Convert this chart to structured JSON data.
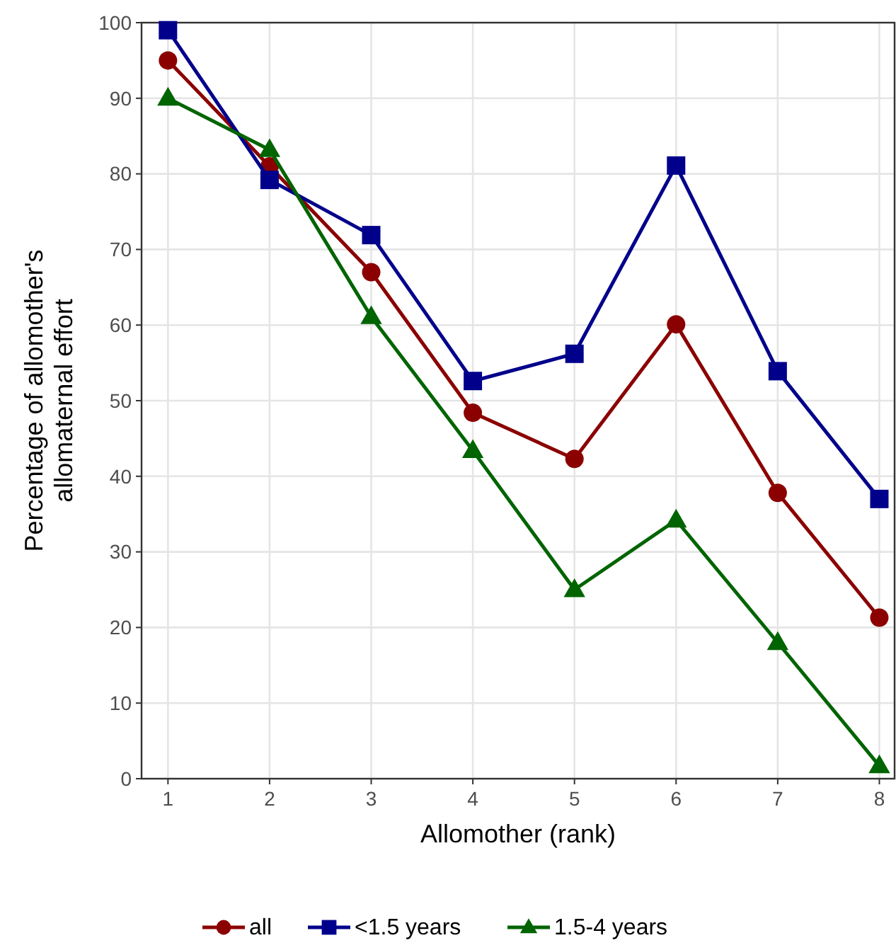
{
  "chart_data": {
    "type": "line",
    "xlabel": "Allomother (rank)",
    "ylabel": "Percentage of allomother's\nallomaternal effort",
    "x": [
      1,
      2,
      3,
      4,
      5,
      6,
      7,
      8
    ],
    "series": [
      {
        "name": "all",
        "color": "#8b0000",
        "marker": "circle",
        "values": [
          95,
          81,
          67,
          48.4,
          42.3,
          60.1,
          37.8,
          21.3
        ]
      },
      {
        "name": "<1.5 years",
        "color": "#00008b",
        "marker": "square",
        "values": [
          99,
          79.2,
          71.9,
          52.6,
          56.2,
          81.1,
          53.9,
          37
        ]
      },
      {
        "name": "1.5-4 years",
        "color": "#006400",
        "marker": "triangle",
        "values": [
          90,
          83.2,
          61.1,
          43.4,
          25,
          34.2,
          18,
          1.7
        ]
      }
    ],
    "xlim": [
      0.74,
      8.15
    ],
    "xticks": [
      1,
      2,
      3,
      4,
      5,
      6,
      7,
      8
    ],
    "ylim": [
      0,
      100
    ],
    "yticks": [
      0,
      10,
      20,
      30,
      40,
      50,
      60,
      70,
      80,
      90,
      100
    ],
    "grid": true,
    "legend": "bottom",
    "line_style": "solid"
  }
}
